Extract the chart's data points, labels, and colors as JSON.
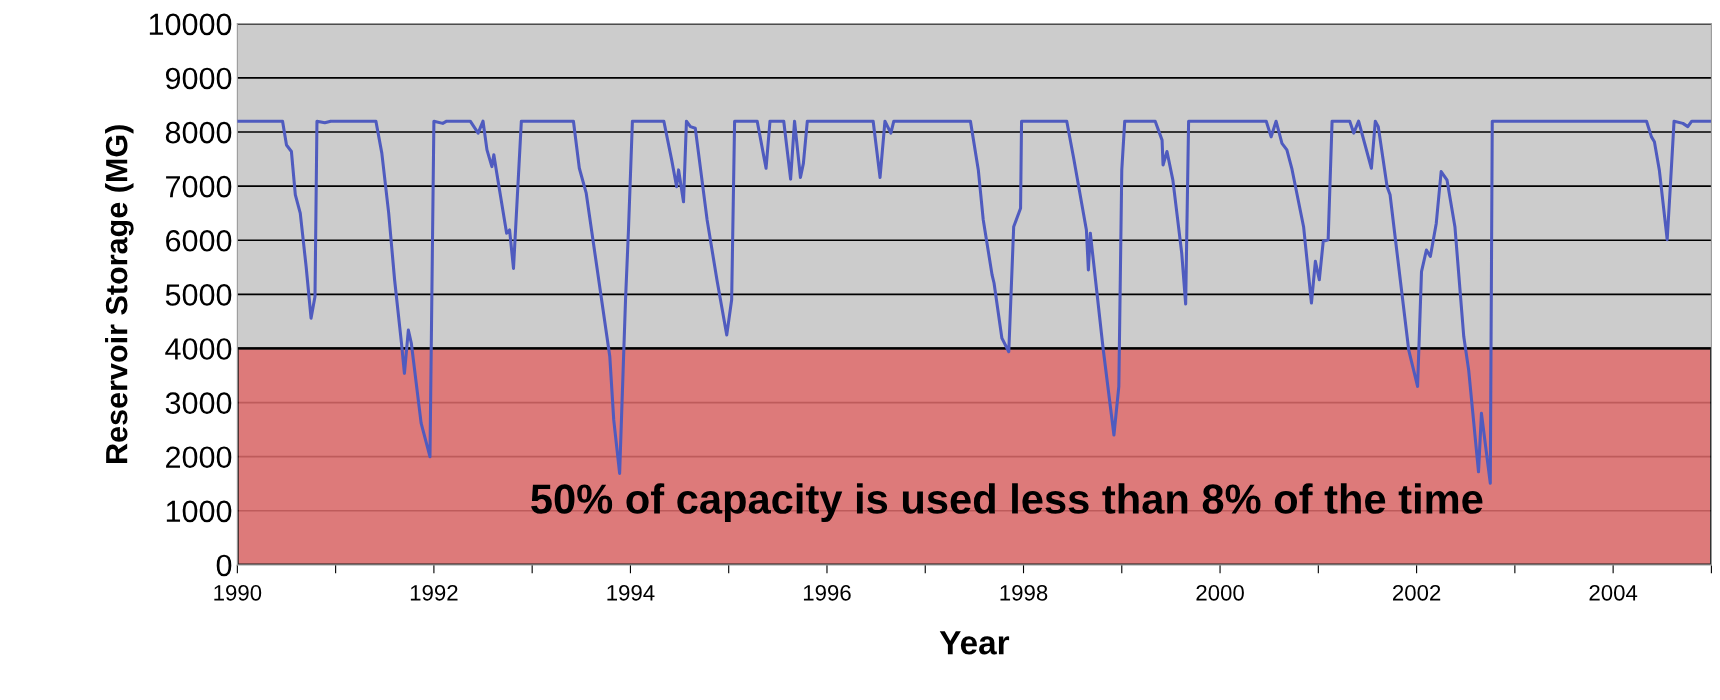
{
  "chart_data": {
    "type": "line",
    "xlabel": "Year",
    "ylabel": "Reservoir Storage (MG)",
    "xlim": [
      1990,
      2005
    ],
    "ylim": [
      0,
      10000
    ],
    "xticks": [
      1990,
      {
        "value": 1991,
        "label": null
      },
      1992,
      {
        "value": 1993,
        "label": null
      },
      1994,
      {
        "value": 1995,
        "label": null
      },
      1996,
      {
        "value": 1997,
        "label": null
      },
      1998,
      {
        "value": 1999,
        "label": null
      },
      2000,
      {
        "value": 2001,
        "label": null
      },
      2002,
      {
        "value": 2003,
        "label": null
      },
      2004,
      {
        "value": 2005,
        "label": null
      }
    ],
    "yticks": [
      0,
      1000,
      2000,
      3000,
      4000,
      5000,
      6000,
      7000,
      8000,
      9000,
      10000
    ],
    "grid": "y",
    "marker": "none",
    "line_style": "solid",
    "bands": [
      {
        "axis": "y",
        "from": 0,
        "to": 4000,
        "color": "#e06c6c"
      }
    ],
    "annotations": [
      "50% of capacity is used less than 8% of the time"
    ],
    "series": [
      {
        "color": "#4f5bbf",
        "x": [
          1990.0,
          1990.46,
          1990.5,
          1990.55,
          1990.59,
          1990.64,
          1990.7,
          1990.75,
          1990.79,
          1990.81,
          1990.89,
          1990.95,
          1991.41,
          1991.47,
          1991.54,
          1991.6,
          1991.67,
          1991.7,
          1991.74,
          1991.77,
          1991.87,
          1991.96,
          1992.0,
          1992.09,
          1992.13,
          1992.37,
          1992.45,
          1992.5,
          1992.54,
          1992.59,
          1992.61,
          1992.64,
          1992.74,
          1992.77,
          1992.81,
          1992.89,
          1993.42,
          1993.48,
          1993.55,
          1993.79,
          1993.83,
          1993.89,
          1993.95,
          1993.98,
          1994.02,
          1994.34,
          1994.42,
          1994.47,
          1994.49,
          1994.54,
          1994.57,
          1994.61,
          1994.66,
          1994.78,
          1994.88,
          1994.98,
          1995.03,
          1995.06,
          1995.29,
          1995.38,
          1995.42,
          1995.56,
          1995.63,
          1995.67,
          1995.73,
          1995.76,
          1995.8,
          1996.47,
          1996.54,
          1996.59,
          1996.65,
          1996.68,
          1997.46,
          1997.54,
          1997.59,
          1997.68,
          1997.7,
          1997.78,
          1997.85,
          1997.9,
          1997.97,
          1997.98,
          1998.44,
          1998.51,
          1998.64,
          1998.66,
          1998.68,
          1998.81,
          1998.92,
          1998.97,
          1999.0,
          1999.03,
          1999.34,
          1999.41,
          1999.42,
          1999.46,
          1999.52,
          1999.61,
          1999.65,
          1999.68,
          2000.47,
          2000.52,
          2000.57,
          2000.63,
          2000.68,
          2000.73,
          2000.85,
          2000.93,
          2000.97,
          2001.01,
          2001.05,
          2001.1,
          2001.14,
          2001.32,
          2001.36,
          2001.41,
          2001.54,
          2001.58,
          2001.61,
          2001.7,
          2001.73,
          2001.92,
          2002.01,
          2002.05,
          2002.1,
          2002.14,
          2002.2,
          2002.25,
          2002.31,
          2002.39,
          2002.48,
          2002.53,
          2002.63,
          2002.66,
          2002.75,
          2002.77,
          2004.34,
          2004.39,
          2004.42,
          2004.47,
          2004.55,
          2004.58,
          2004.62,
          2004.71,
          2004.76,
          2004.8,
          2004.88,
          2004.98
        ],
        "values": [
          8200,
          8200,
          7760,
          7640,
          6840,
          6500,
          5510,
          4560,
          4960,
          8200,
          8170,
          8200,
          8200,
          7610,
          6500,
          5270,
          4100,
          3540,
          4340,
          4100,
          2620,
          2000,
          8200,
          8160,
          8200,
          8200,
          7980,
          8200,
          7670,
          7360,
          7580,
          7240,
          6130,
          6190,
          5480,
          8200,
          8200,
          7330,
          6870,
          3850,
          2680,
          1690,
          4900,
          6190,
          8200,
          8200,
          7480,
          6990,
          7300,
          6710,
          8200,
          8100,
          8070,
          6380,
          5270,
          4250,
          4900,
          8200,
          8200,
          7330,
          8200,
          8200,
          7130,
          8200,
          7160,
          7420,
          8200,
          8200,
          7160,
          8200,
          7980,
          8200,
          8200,
          7300,
          6380,
          5360,
          5210,
          4190,
          3940,
          6250,
          6590,
          8200,
          8200,
          7520,
          6190,
          5450,
          6130,
          4000,
          2400,
          3300,
          7300,
          8200,
          8200,
          7850,
          7390,
          7640,
          7110,
          5760,
          4820,
          8200,
          8200,
          7910,
          8200,
          7790,
          7670,
          7330,
          6250,
          4840,
          5610,
          5270,
          5980,
          6010,
          8200,
          8200,
          7980,
          8200,
          7330,
          8200,
          8100,
          6990,
          6840,
          3970,
          3300,
          5420,
          5820,
          5700,
          6310,
          7270,
          7110,
          6250,
          4220,
          3600,
          1720,
          2800,
          1510,
          8200,
          8200,
          7910,
          7820,
          7300,
          6010,
          6930,
          8200,
          8160,
          8100,
          8200,
          8200,
          8200
        ]
      }
    ]
  }
}
